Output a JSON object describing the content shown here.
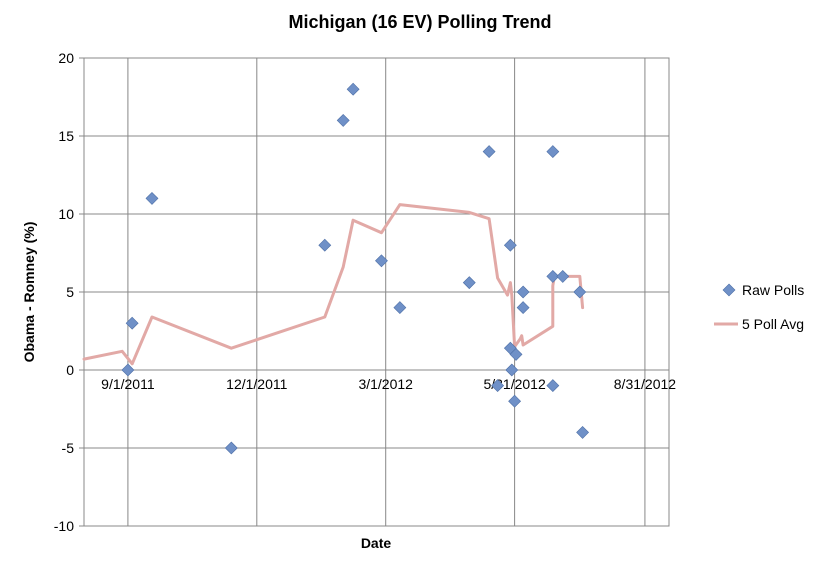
{
  "chart_data": {
    "type": "scatter",
    "title": "Michigan (16 EV) Polling Trend",
    "xlabel": "Date",
    "ylabel": "Obama - Romney (%)",
    "ylim": [
      -10,
      20
    ],
    "yticks": [
      -10,
      -5,
      0,
      5,
      10,
      15,
      20
    ],
    "xlim": [
      "2011-08-01",
      "2012-09-17"
    ],
    "xticks": [
      "2011-09-01",
      "2011-12-01",
      "2012-03-01",
      "2012-05-31",
      "2012-08-31"
    ],
    "xtick_labels": [
      "9/1/2011",
      "12/1/2011",
      "3/1/2012",
      "5/31/2012",
      "8/31/2012"
    ],
    "grid": true,
    "legend_position": "right",
    "series": [
      {
        "name": "Raw Polls",
        "kind": "scatter",
        "marker": "diamond",
        "color": "#6f90c7",
        "points": [
          [
            "2011-09-01",
            0
          ],
          [
            "2011-09-04",
            3
          ],
          [
            "2011-09-18",
            11
          ],
          [
            "2011-11-13",
            -5
          ],
          [
            "2012-01-18",
            8
          ],
          [
            "2012-01-31",
            16
          ],
          [
            "2012-02-07",
            18
          ],
          [
            "2012-02-27",
            7
          ],
          [
            "2012-03-11",
            4
          ],
          [
            "2012-04-29",
            5.6
          ],
          [
            "2012-05-13",
            14
          ],
          [
            "2012-05-19",
            -1
          ],
          [
            "2012-05-28",
            1.4
          ],
          [
            "2012-05-28",
            8
          ],
          [
            "2012-05-29",
            0
          ],
          [
            "2012-05-31",
            -2
          ],
          [
            "2012-06-01",
            1
          ],
          [
            "2012-06-06",
            4
          ],
          [
            "2012-06-06",
            5
          ],
          [
            "2012-06-27",
            14
          ],
          [
            "2012-06-27",
            6
          ],
          [
            "2012-06-27",
            -1
          ],
          [
            "2012-07-04",
            6
          ],
          [
            "2012-07-16",
            5
          ],
          [
            "2012-07-18",
            -4
          ]
        ]
      },
      {
        "name": "5 Poll Avg",
        "kind": "line",
        "color": "#e2a9a6",
        "points": [
          [
            "2011-08-01",
            0.7
          ],
          [
            "2011-08-28",
            1.2
          ],
          [
            "2011-09-04",
            0.4
          ],
          [
            "2011-09-18",
            3.4
          ],
          [
            "2011-11-13",
            1.4
          ],
          [
            "2012-01-18",
            3.4
          ],
          [
            "2012-01-31",
            6.6
          ],
          [
            "2012-02-07",
            9.6
          ],
          [
            "2012-02-27",
            8.8
          ],
          [
            "2012-03-11",
            10.6
          ],
          [
            "2012-04-29",
            10.1
          ],
          [
            "2012-05-13",
            9.7
          ],
          [
            "2012-05-19",
            5.9
          ],
          [
            "2012-05-26",
            4.8
          ],
          [
            "2012-05-28",
            5.6
          ],
          [
            "2012-05-29",
            4.8
          ],
          [
            "2012-05-31",
            1.5
          ],
          [
            "2012-06-04",
            2
          ],
          [
            "2012-06-05",
            2.2
          ],
          [
            "2012-06-06",
            1.6
          ],
          [
            "2012-06-27",
            2.8
          ],
          [
            "2012-06-27",
            5.4
          ],
          [
            "2012-06-28",
            6
          ],
          [
            "2012-07-04",
            6
          ],
          [
            "2012-07-16",
            6
          ],
          [
            "2012-07-17",
            5
          ],
          [
            "2012-07-18",
            4
          ]
        ]
      }
    ]
  }
}
